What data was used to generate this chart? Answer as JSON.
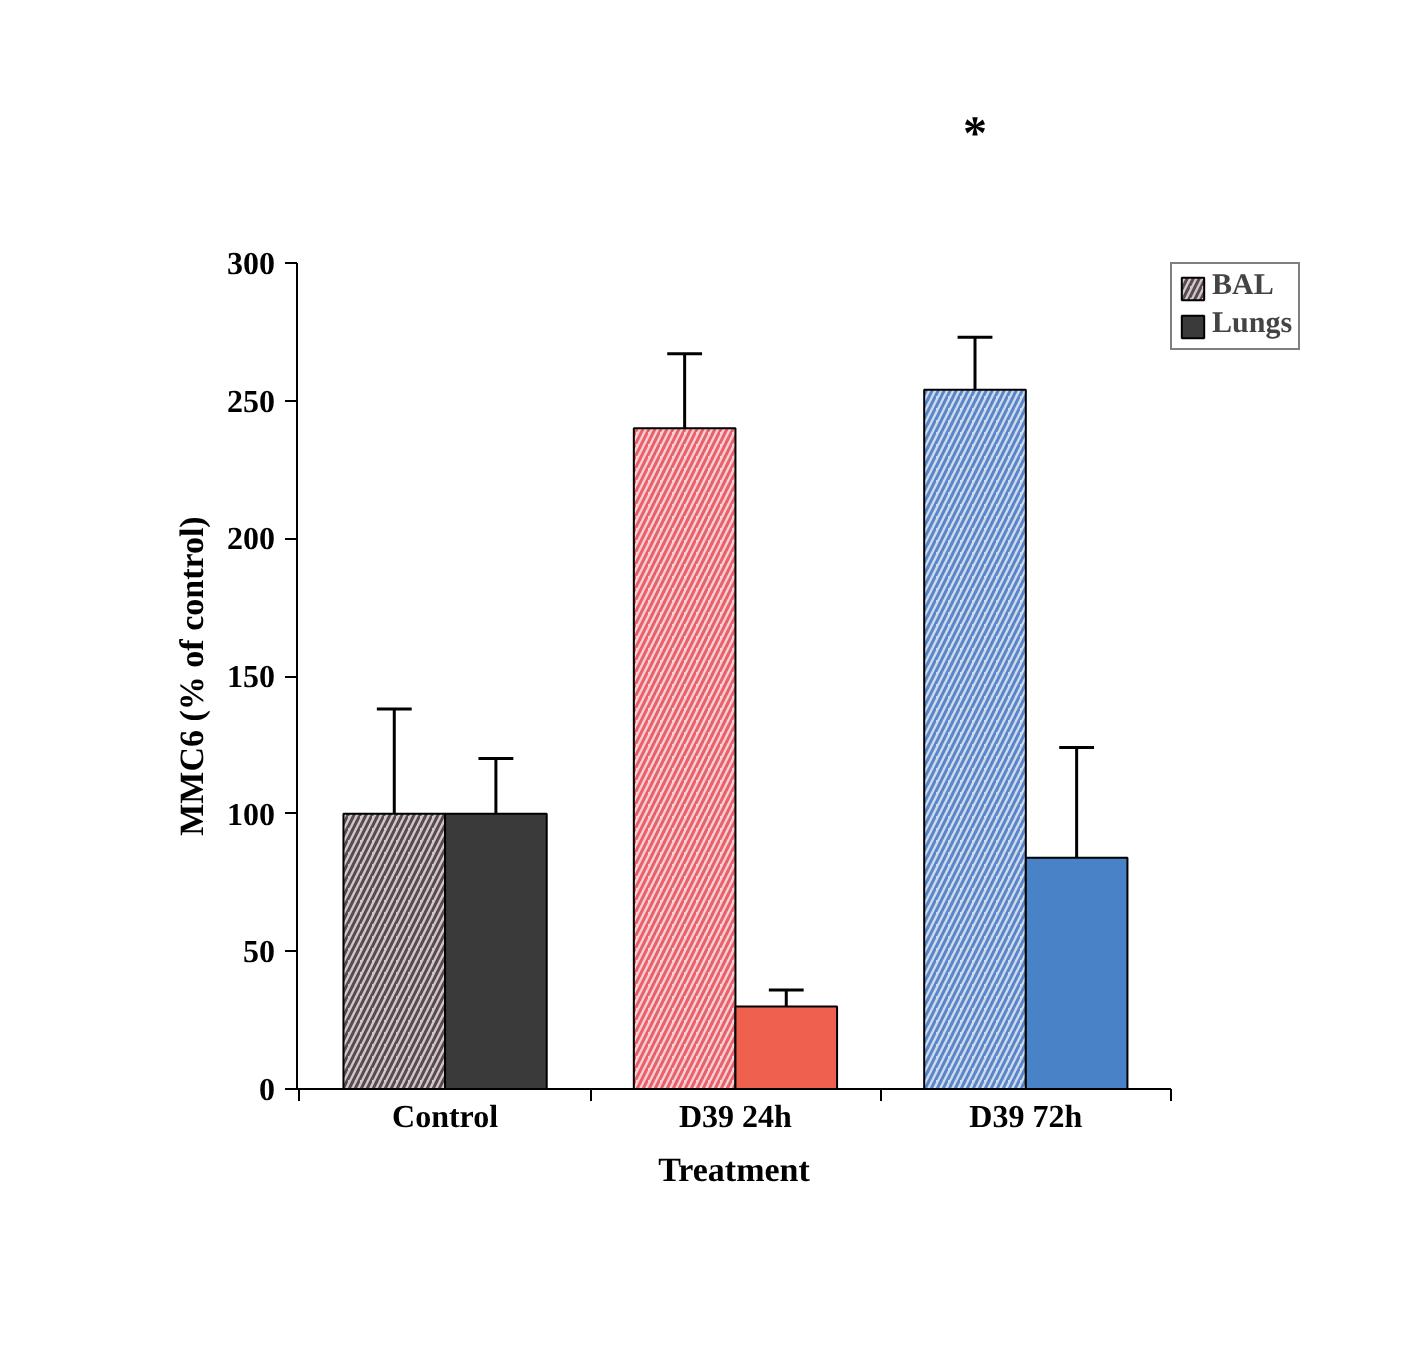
{
  "chart_data": {
    "type": "bar",
    "xlabel": "Treatment",
    "ylabel": "MMC6 (% of control)",
    "categories": [
      "Control",
      "D39 24h",
      "D39 72h"
    ],
    "series": [
      {
        "name": "BAL",
        "colors": [
          "#5a4a4e",
          "#e8606a",
          "#5a86c8"
        ],
        "values": [
          100,
          240,
          254
        ],
        "errors": [
          [
            100,
            138
          ],
          [
            240,
            267
          ],
          [
            254,
            273
          ]
        ]
      },
      {
        "name": "Lungs",
        "colors": [
          "#3a3a3a",
          "#f0604e",
          "#4a82c8"
        ],
        "values": [
          100,
          30,
          84
        ],
        "errors": [
          [
            100,
            120
          ],
          [
            30,
            36
          ],
          [
            84,
            124
          ]
        ]
      }
    ],
    "ylim": [
      0,
      300
    ],
    "yticks": [
      0,
      50,
      100,
      150,
      200,
      250,
      300
    ],
    "annotations": [
      "*"
    ],
    "grid": false,
    "legend": "top right"
  }
}
